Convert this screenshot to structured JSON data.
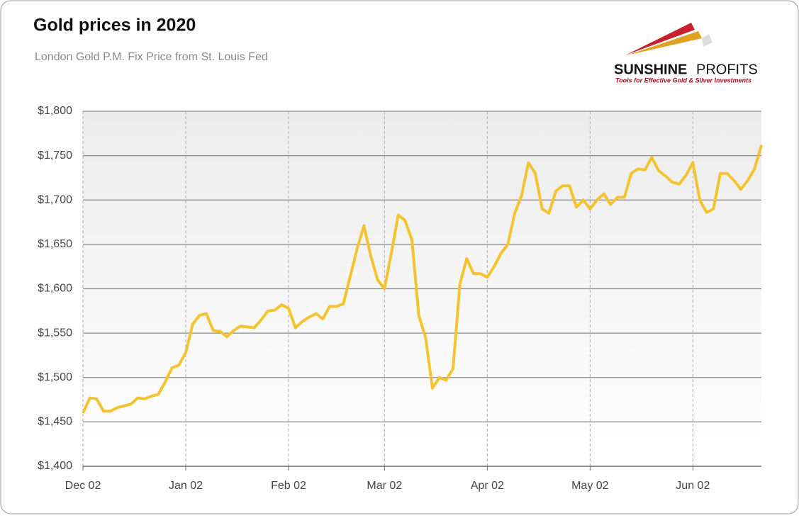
{
  "chart_data": {
    "type": "line",
    "title": "Gold prices in 2020",
    "subtitle": "London Gold P.M. Fix Price from St. Louis Fed",
    "x": [
      "Dec 02",
      "Dec 04",
      "Dec 06",
      "Dec 08",
      "Dec 10",
      "Dec 12",
      "Dec 14",
      "Dec 16",
      "Dec 18",
      "Dec 20",
      "Dec 22",
      "Dec 24",
      "Dec 26",
      "Dec 28",
      "Dec 30",
      "Jan 02",
      "Jan 04",
      "Jan 06",
      "Jan 08",
      "Jan 10",
      "Jan 12",
      "Jan 14",
      "Jan 16",
      "Jan 18",
      "Jan 20",
      "Jan 22",
      "Jan 24",
      "Jan 26",
      "Jan 28",
      "Jan 30",
      "Feb 02",
      "Feb 04",
      "Feb 06",
      "Feb 08",
      "Feb 10",
      "Feb 12",
      "Feb 14",
      "Feb 16",
      "Feb 18",
      "Feb 20",
      "Feb 22",
      "Feb 24",
      "Feb 26",
      "Feb 28",
      "Mar 02",
      "Mar 04",
      "Mar 06",
      "Mar 08",
      "Mar 10",
      "Mar 12",
      "Mar 14",
      "Mar 16",
      "Mar 18",
      "Mar 20",
      "Mar 22",
      "Mar 24",
      "Mar 26",
      "Mar 28",
      "Mar 30",
      "Apr 02",
      "Apr 04",
      "Apr 06",
      "Apr 08",
      "Apr 10",
      "Apr 12",
      "Apr 14",
      "Apr 16",
      "Apr 18",
      "Apr 20",
      "Apr 22",
      "Apr 24",
      "Apr 26",
      "Apr 28",
      "Apr 30",
      "May 02",
      "May 04",
      "May 06",
      "May 08",
      "May 10",
      "May 12",
      "May 14",
      "May 16",
      "May 18",
      "May 20",
      "May 22",
      "May 24",
      "May 26",
      "May 28",
      "May 30",
      "Jun 02",
      "Jun 04",
      "Jun 06",
      "Jun 08",
      "Jun 10",
      "Jun 12",
      "Jun 14",
      "Jun 16",
      "Jun 18",
      "Jun 20",
      "Jun 22"
    ],
    "series": [
      {
        "name": "Gold",
        "color": "#f4c430",
        "values": [
          1460,
          1477,
          1476,
          1462,
          1462,
          1466,
          1468,
          1470,
          1477,
          1476,
          1479,
          1481,
          1495,
          1511,
          1514,
          1528,
          1560,
          1570,
          1572,
          1553,
          1552,
          1546,
          1553,
          1558,
          1557,
          1556,
          1565,
          1575,
          1576,
          1582,
          1578,
          1556,
          1563,
          1568,
          1572,
          1566,
          1580,
          1580,
          1583,
          1614,
          1645,
          1671,
          1637,
          1610,
          1600,
          1640,
          1683,
          1677,
          1655,
          1570,
          1545,
          1488,
          1500,
          1497,
          1510,
          1605,
          1634,
          1617,
          1617,
          1613,
          1625,
          1640,
          1650,
          1685,
          1705,
          1742,
          1730,
          1690,
          1685,
          1710,
          1716,
          1716,
          1692,
          1700,
          1690,
          1700,
          1707,
          1695,
          1703,
          1703,
          1730,
          1735,
          1734,
          1748,
          1733,
          1727,
          1720,
          1718,
          1728,
          1742,
          1700,
          1686,
          1690,
          1730,
          1730,
          1722,
          1712,
          1722,
          1735,
          1762
        ]
      }
    ],
    "xticks": [
      "Dec 02",
      "Jan 02",
      "Feb 02",
      "Mar 02",
      "Apr 02",
      "May 02",
      "Jun 02"
    ],
    "ylim": [
      1400,
      1800
    ],
    "yticks": [
      {
        "value": 1400,
        "label": "$1,400"
      },
      {
        "value": 1450,
        "label": "$1,450"
      },
      {
        "value": 1500,
        "label": "$1,500"
      },
      {
        "value": 1550,
        "label": "$1,550"
      },
      {
        "value": 1600,
        "label": "$1,600"
      },
      {
        "value": 1650,
        "label": "$1,650"
      },
      {
        "value": 1700,
        "label": "$1,700"
      },
      {
        "value": 1750,
        "label": "$1,750"
      },
      {
        "value": 1800,
        "label": "$1,800"
      }
    ],
    "grid": true
  },
  "logo": {
    "name_bold": "SUNSHINE",
    "name": "PROFITS",
    "tagline": "Tools for Effective Gold & Silver Investments"
  }
}
